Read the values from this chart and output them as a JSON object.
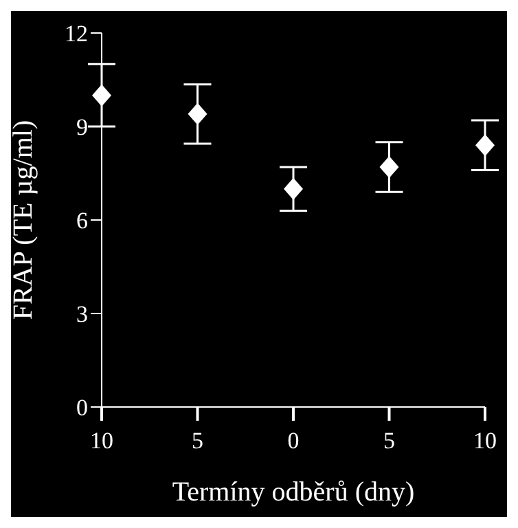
{
  "chart_data": {
    "type": "scatter",
    "xlabel": "Termíny odběrů (dny)",
    "ylabel": "FRAP (TE µg/ml)",
    "categories": [
      "10",
      "5",
      "0",
      "5",
      "10"
    ],
    "values": [
      10.0,
      9.4,
      7.0,
      7.7,
      8.4
    ],
    "errors": [
      1.0,
      0.95,
      0.7,
      0.8,
      0.8
    ],
    "color": "#ffffff",
    "marker": "diamond",
    "ylim": [
      0,
      12
    ],
    "yticks": [
      0,
      3,
      6,
      9,
      12
    ],
    "grid": false
  }
}
